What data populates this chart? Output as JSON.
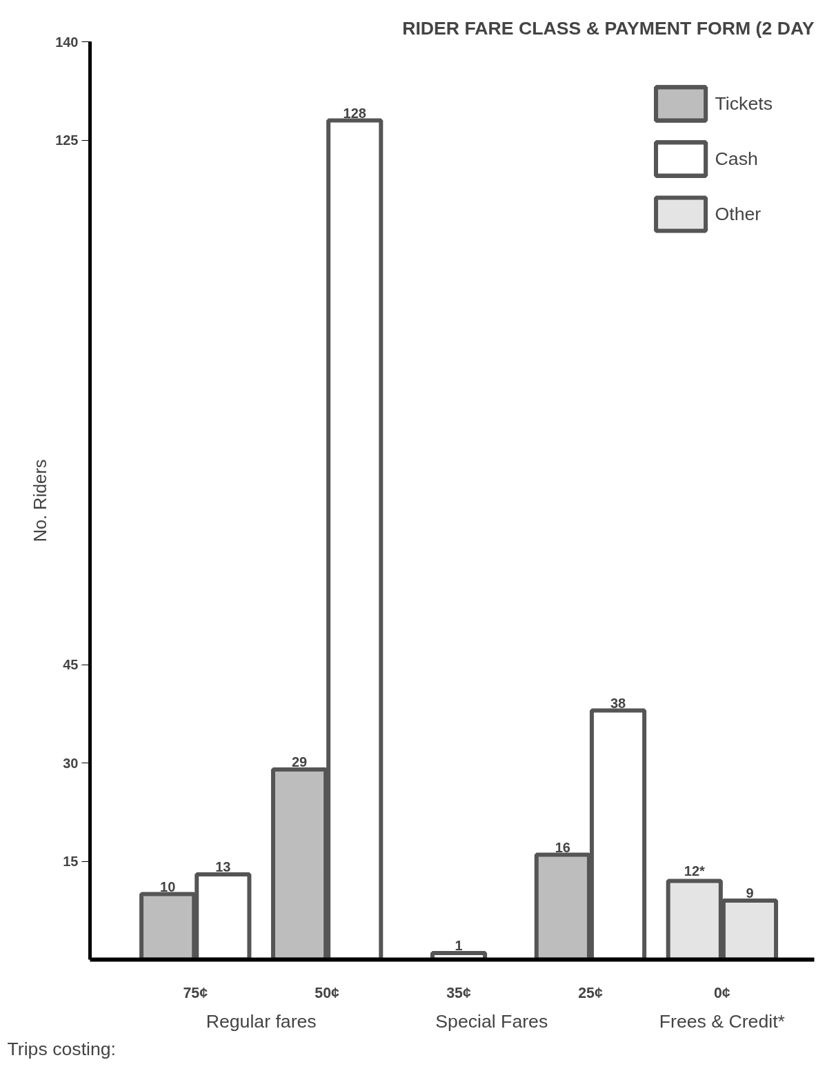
{
  "chart_data": {
    "type": "bar",
    "title": "RIDER FARE CLASS & PAYMENT FORM (2 DAY",
    "xlabel": "Trips costing:",
    "ylabel": "No. Riders",
    "categories": [
      "75¢",
      "50¢",
      "35¢",
      "25¢",
      "0¢"
    ],
    "series": [
      {
        "name": "Tickets",
        "color": "#bdbdbd",
        "values": [
          10,
          29,
          null,
          16,
          null
        ],
        "value_labels": [
          "10",
          "29",
          null,
          "16",
          null
        ]
      },
      {
        "name": "Cash",
        "color": "#ffffff",
        "values": [
          13,
          128,
          1,
          38,
          null
        ],
        "value_labels": [
          "13",
          "128",
          "1",
          "38",
          null
        ]
      },
      {
        "name": "Other",
        "color": "#e4e4e4",
        "values": [
          null,
          null,
          null,
          null,
          12
        ],
        "value_labels": [
          null,
          null,
          null,
          null,
          "12*"
        ]
      },
      {
        "color": "#e4e4e4",
        "values": [
          null,
          null,
          null,
          null,
          9
        ],
        "value_labels": [
          null,
          null,
          null,
          null,
          "9"
        ]
      }
    ],
    "ylim": [
      0,
      140
    ],
    "yticks": [
      15,
      30,
      45,
      125,
      140
    ],
    "annotations": [
      "Regular fares",
      "Special Fares",
      "Frees & Credit*"
    ],
    "legend": "top right",
    "grid": false
  }
}
